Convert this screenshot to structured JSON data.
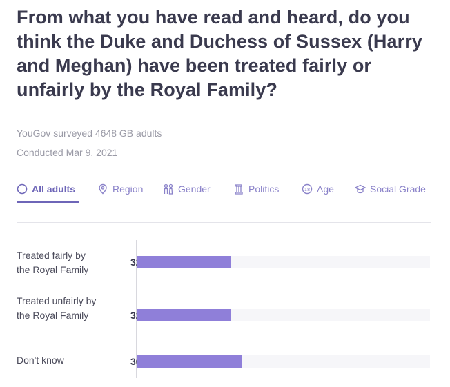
{
  "title": "From what you have read and heard, do you think the Duke and Duchess of Sussex (Harry and Meghan) have been treated fairly or unfairly by the Royal Family?",
  "meta": {
    "surveyed": "YouGov surveyed 4648 GB adults",
    "conducted": "Conducted Mar 9, 2021"
  },
  "tabs": [
    {
      "label": "All adults",
      "icon": "circle-icon",
      "active": true
    },
    {
      "label": "Region",
      "icon": "map-pin-icon"
    },
    {
      "label": "Gender",
      "icon": "gender-icon"
    },
    {
      "label": "Politics",
      "icon": "politics-icon"
    },
    {
      "label": "Age",
      "icon": "age-icon"
    },
    {
      "label": "Social Grade",
      "icon": "social-grade-icon"
    }
  ],
  "colors": {
    "accent": "#6e66b8",
    "bar": "#8f7fd9",
    "track": "#f6f6f9"
  },
  "chart_data": {
    "type": "bar",
    "orientation": "horizontal",
    "categories": [
      "Treated fairly by the Royal Family",
      "Treated unfairly by the Royal Family",
      "Don't know"
    ],
    "values": [
      32,
      32,
      36
    ],
    "value_suffix": "%",
    "xlim": [
      0,
      100
    ],
    "grid": false
  }
}
